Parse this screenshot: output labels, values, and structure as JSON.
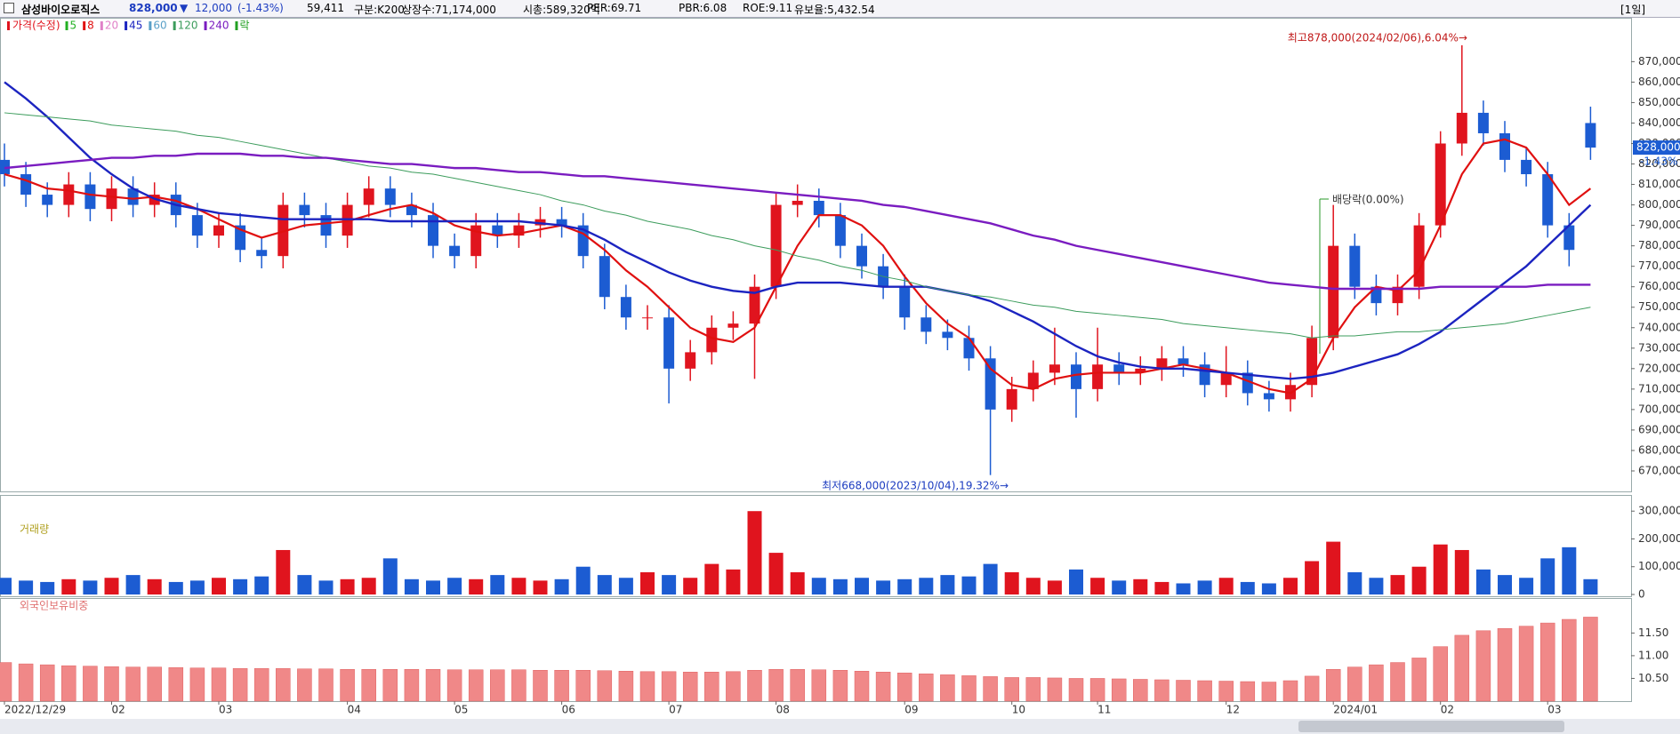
{
  "header": {
    "name": "삼성바이오로직스",
    "price": "828,000",
    "arrow": "▼",
    "change": "12,000",
    "change_pct": "(-1.43%)",
    "volume": "59,411",
    "market": "구분:K200",
    "shares": "상장수:71,174,000",
    "cap": "시총:589,320억",
    "per": "PER:69.71",
    "pbr": "PBR:6.08",
    "roe": "ROE:9.11",
    "reserve": "유보율:5,432.54",
    "period": "[1일]"
  },
  "chart_data": [
    {
      "type": "candlestick",
      "legend_title": "가격(수정)",
      "legend_extra": "락",
      "up_color": "#e0141e",
      "down_color": "#1c5cd2",
      "categories": [
        "2022/12/29",
        null,
        null,
        null,
        null,
        "02",
        null,
        null,
        null,
        null,
        "03",
        null,
        null,
        null,
        null,
        null,
        "04",
        null,
        null,
        null,
        null,
        "05",
        null,
        null,
        null,
        null,
        "06",
        null,
        null,
        null,
        null,
        "07",
        null,
        null,
        null,
        null,
        "08",
        null,
        null,
        null,
        null,
        null,
        "09",
        null,
        null,
        null,
        null,
        "10",
        null,
        null,
        null,
        "11",
        null,
        null,
        null,
        null,
        null,
        "12",
        null,
        null,
        null,
        null,
        "2024/01",
        null,
        null,
        null,
        null,
        "02",
        null,
        null,
        null,
        null,
        "03",
        null,
        null
      ],
      "open": [
        822000,
        815000,
        805000,
        800000,
        810000,
        798000,
        808000,
        800000,
        805000,
        795000,
        785000,
        790000,
        778000,
        775000,
        800000,
        795000,
        785000,
        800000,
        808000,
        800000,
        795000,
        780000,
        775000,
        790000,
        785000,
        790000,
        793000,
        790000,
        775000,
        755000,
        745000,
        745000,
        720000,
        728000,
        740000,
        742000,
        760000,
        800000,
        802000,
        795000,
        780000,
        770000,
        760000,
        745000,
        738000,
        735000,
        725000,
        700000,
        710000,
        718000,
        722000,
        710000,
        722000,
        718000,
        720000,
        725000,
        722000,
        712000,
        718000,
        708000,
        705000,
        712000,
        735000,
        780000,
        760000,
        752000,
        760000,
        790000,
        830000,
        845000,
        835000,
        822000,
        815000,
        790000,
        840000
      ],
      "high": [
        830000,
        821000,
        811000,
        816000,
        816000,
        814000,
        814000,
        811000,
        811000,
        801000,
        796000,
        796000,
        784000,
        806000,
        806000,
        801000,
        806000,
        814000,
        814000,
        806000,
        801000,
        786000,
        796000,
        796000,
        796000,
        799000,
        799000,
        796000,
        781000,
        761000,
        751000,
        751000,
        734000,
        746000,
        748000,
        766000,
        806000,
        810000,
        808000,
        801000,
        786000,
        776000,
        766000,
        751000,
        744000,
        741000,
        731000,
        716000,
        724000,
        740000,
        728000,
        740000,
        728000,
        726000,
        731000,
        731000,
        728000,
        731000,
        724000,
        714000,
        718000,
        741000,
        800000,
        786000,
        766000,
        766000,
        796000,
        836000,
        878000,
        851000,
        841000,
        828000,
        821000,
        796000,
        848000
      ],
      "low": [
        809000,
        799000,
        794000,
        794000,
        792000,
        792000,
        794000,
        794000,
        789000,
        779000,
        779000,
        772000,
        769000,
        769000,
        789000,
        779000,
        779000,
        794000,
        794000,
        789000,
        774000,
        769000,
        769000,
        779000,
        779000,
        784000,
        784000,
        769000,
        749000,
        739000,
        739000,
        703000,
        714000,
        722000,
        734000,
        715000,
        754000,
        794000,
        789000,
        774000,
        764000,
        754000,
        739000,
        732000,
        729000,
        719000,
        668000,
        694000,
        704000,
        712000,
        696000,
        704000,
        712000,
        712000,
        714000,
        716000,
        706000,
        706000,
        702000,
        699000,
        699000,
        706000,
        729000,
        754000,
        746000,
        746000,
        754000,
        784000,
        824000,
        829000,
        816000,
        809000,
        784000,
        770000,
        822000
      ],
      "close": [
        815000,
        805000,
        800000,
        810000,
        798000,
        808000,
        800000,
        805000,
        795000,
        785000,
        790000,
        778000,
        775000,
        800000,
        795000,
        785000,
        800000,
        808000,
        800000,
        795000,
        780000,
        775000,
        790000,
        785000,
        790000,
        793000,
        790000,
        775000,
        755000,
        745000,
        745000,
        720000,
        728000,
        740000,
        742000,
        760000,
        800000,
        802000,
        795000,
        780000,
        770000,
        760000,
        745000,
        738000,
        735000,
        725000,
        700000,
        710000,
        718000,
        722000,
        710000,
        722000,
        718000,
        720000,
        725000,
        722000,
        712000,
        718000,
        708000,
        705000,
        712000,
        735000,
        780000,
        760000,
        752000,
        760000,
        790000,
        830000,
        845000,
        835000,
        822000,
        815000,
        790000,
        778000,
        828000
      ],
      "series": [
        {
          "name": "5",
          "color": "#22b022"
        },
        {
          "name": "8",
          "color": "#e01010",
          "values": [
            815000,
            812000,
            808000,
            807000,
            805000,
            804000,
            803000,
            804000,
            802000,
            798000,
            793000,
            788000,
            784000,
            787000,
            790000,
            791000,
            792000,
            795000,
            798000,
            800000,
            796000,
            790000,
            787000,
            785000,
            786000,
            788000,
            790000,
            786000,
            778000,
            768000,
            760000,
            750000,
            740000,
            735000,
            733000,
            740000,
            760000,
            780000,
            795000,
            795000,
            790000,
            780000,
            765000,
            752000,
            742000,
            735000,
            720000,
            712000,
            710000,
            715000,
            717000,
            718000,
            718000,
            718000,
            720000,
            722000,
            720000,
            718000,
            714000,
            710000,
            708000,
            715000,
            735000,
            750000,
            760000,
            758000,
            768000,
            790000,
            815000,
            830000,
            832000,
            828000,
            815000,
            800000,
            808000
          ]
        },
        {
          "name": "20",
          "color": "#e080c8"
        },
        {
          "name": "45",
          "color": "#1c24c0",
          "values": [
            860000,
            852000,
            843000,
            833000,
            823000,
            815000,
            808000,
            803000,
            800000,
            798000,
            796000,
            795000,
            794000,
            793000,
            793000,
            793000,
            793000,
            793000,
            792000,
            792000,
            792000,
            792000,
            792000,
            792000,
            792000,
            791000,
            790000,
            788000,
            783000,
            777000,
            772000,
            767000,
            763000,
            760000,
            758000,
            757000,
            760000,
            762000,
            762000,
            762000,
            761000,
            760000,
            760000,
            760000,
            758000,
            756000,
            753000,
            748000,
            743000,
            737000,
            731000,
            726000,
            723000,
            721000,
            720000,
            720000,
            719000,
            718000,
            717000,
            716000,
            715000,
            716000,
            718000,
            721000,
            724000,
            727000,
            732000,
            738000,
            746000,
            754000,
            762000,
            770000,
            780000,
            790000,
            800000
          ]
        },
        {
          "name": "60",
          "color": "#5aa0c8"
        },
        {
          "name": "120",
          "color": "#3c9c5c",
          "values": [
            845000,
            844000,
            843000,
            842000,
            841000,
            839000,
            838000,
            837000,
            836000,
            834000,
            833000,
            831000,
            829000,
            827000,
            825000,
            823000,
            821000,
            819000,
            818000,
            816000,
            815000,
            813000,
            811000,
            809000,
            807000,
            805000,
            802000,
            800000,
            797000,
            795000,
            792000,
            790000,
            788000,
            785000,
            783000,
            780000,
            778000,
            775000,
            773000,
            770000,
            768000,
            765000,
            763000,
            760000,
            758000,
            756000,
            755000,
            753000,
            751000,
            750000,
            748000,
            747000,
            746000,
            745000,
            744000,
            742000,
            741000,
            740000,
            739000,
            738000,
            737000,
            735000,
            736000,
            736000,
            737000,
            738000,
            738000,
            739000,
            740000,
            741000,
            742000,
            744000,
            746000,
            748000,
            750000
          ]
        },
        {
          "name": "240",
          "color": "#7a1cc0",
          "values": [
            818000,
            819000,
            820000,
            821000,
            822000,
            823000,
            823000,
            824000,
            824000,
            825000,
            825000,
            825000,
            824000,
            824000,
            823000,
            823000,
            822000,
            821000,
            820000,
            820000,
            819000,
            818000,
            818000,
            817000,
            816000,
            816000,
            815000,
            814000,
            814000,
            813000,
            812000,
            811000,
            810000,
            809000,
            808000,
            807000,
            806000,
            805000,
            804000,
            803000,
            802000,
            800000,
            799000,
            797000,
            795000,
            793000,
            791000,
            788000,
            785000,
            783000,
            780000,
            778000,
            776000,
            774000,
            772000,
            770000,
            768000,
            766000,
            764000,
            762000,
            761000,
            760000,
            759000,
            759000,
            759000,
            759000,
            759000,
            760000,
            760000,
            760000,
            760000,
            760000,
            761000,
            761000,
            761000
          ]
        }
      ],
      "ylim": [
        660000,
        891000
      ],
      "yticks": [
        {
          "value": 670000,
          "label": "670,000"
        },
        {
          "value": 680000,
          "label": "680,000"
        },
        {
          "value": 690000,
          "label": "690,000"
        },
        {
          "value": 700000,
          "label": "700,000"
        },
        {
          "value": 710000,
          "label": "710,000"
        },
        {
          "value": 720000,
          "label": "720,000"
        },
        {
          "value": 730000,
          "label": "730,000"
        },
        {
          "value": 740000,
          "label": "740,000"
        },
        {
          "value": 750000,
          "label": "750,000"
        },
        {
          "value": 760000,
          "label": "760,000"
        },
        {
          "value": 770000,
          "label": "770,000"
        },
        {
          "value": 780000,
          "label": "780,000"
        },
        {
          "value": 790000,
          "label": "790,000"
        },
        {
          "value": 800000,
          "label": "800,000"
        },
        {
          "value": 810000,
          "label": "810,000"
        },
        {
          "value": 820000,
          "label": "820,000"
        },
        {
          "value": 830000,
          "label": "830,000"
        },
        {
          "value": 840000,
          "label": "840,000"
        },
        {
          "value": 850000,
          "label": "850,000"
        },
        {
          "value": 860000,
          "label": "860,000"
        },
        {
          "value": 870000,
          "label": "870,000"
        }
      ],
      "annotations": {
        "high": "최고878,000(2024/02/06),6.04%→",
        "low": "최저668,000(2023/10/04),19.32%→",
        "dividend": "배당락(0.00%)"
      },
      "last_label": "828,000",
      "last_change": "-1.43%"
    },
    {
      "type": "bar",
      "title": "거래량",
      "values": [
        60000,
        50000,
        45000,
        55000,
        50000,
        60000,
        70000,
        55000,
        45000,
        50000,
        60000,
        55000,
        65000,
        160000,
        70000,
        50000,
        55000,
        60000,
        130000,
        55000,
        50000,
        60000,
        55000,
        70000,
        60000,
        50000,
        55000,
        100000,
        70000,
        60000,
        80000,
        70000,
        60000,
        110000,
        90000,
        300000,
        150000,
        80000,
        60000,
        55000,
        60000,
        50000,
        55000,
        60000,
        70000,
        65000,
        110000,
        80000,
        60000,
        50000,
        90000,
        60000,
        50000,
        55000,
        45000,
        40000,
        50000,
        60000,
        45000,
        40000,
        60000,
        120000,
        190000,
        80000,
        60000,
        70000,
        100000,
        180000,
        160000,
        90000,
        70000,
        60000,
        130000,
        170000,
        55000
      ],
      "ylim": [
        0,
        355000
      ],
      "yticks": [
        0,
        {
          "value": 100000,
          "label": "100,000"
        },
        {
          "value": 200000,
          "label": "200,000"
        },
        {
          "value": 300000,
          "label": "300,000"
        }
      ]
    },
    {
      "type": "bar",
      "title": "외국인보유비중",
      "color": "#f08888",
      "values": [
        10.85,
        10.82,
        10.8,
        10.78,
        10.77,
        10.76,
        10.75,
        10.75,
        10.74,
        10.73,
        10.73,
        10.72,
        10.72,
        10.72,
        10.71,
        10.71,
        10.7,
        10.7,
        10.7,
        10.7,
        10.7,
        10.69,
        10.69,
        10.69,
        10.69,
        10.68,
        10.68,
        10.68,
        10.67,
        10.66,
        10.65,
        10.65,
        10.64,
        10.64,
        10.65,
        10.68,
        10.7,
        10.7,
        10.69,
        10.68,
        10.66,
        10.64,
        10.62,
        10.6,
        10.58,
        10.56,
        10.54,
        10.52,
        10.52,
        10.51,
        10.5,
        10.5,
        10.49,
        10.48,
        10.47,
        10.46,
        10.45,
        10.44,
        10.43,
        10.42,
        10.45,
        10.55,
        10.7,
        10.75,
        10.8,
        10.85,
        10.95,
        11.2,
        11.45,
        11.55,
        11.6,
        11.65,
        11.72,
        11.8,
        11.85
      ],
      "ylim": [
        10.0,
        12.25
      ],
      "yticks": [
        {
          "value": 10.5,
          "label": "10.50"
        },
        {
          "value": 11,
          "label": "11.00"
        },
        {
          "value": 11.5,
          "label": "11.50"
        }
      ]
    }
  ]
}
